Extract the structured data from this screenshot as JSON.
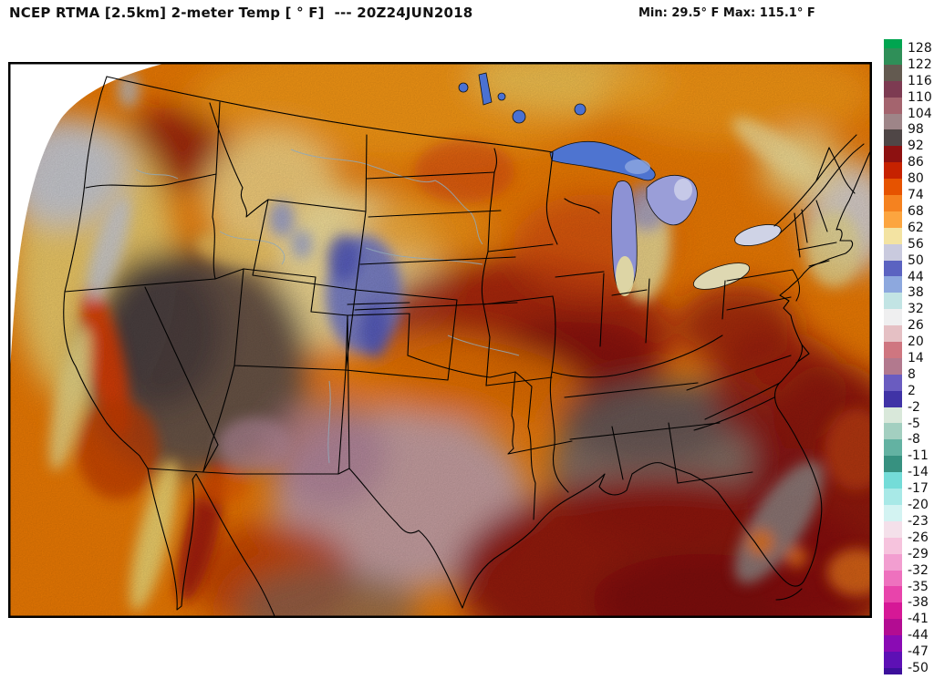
{
  "header": {
    "title": "NCEP RTMA [2.5km] 2-meter Temp [ ° F]  --- 20Z24JUN2018",
    "stats": "Min: 29.5° F Max: 115.1° F"
  },
  "colorbar": {
    "units": "°F",
    "tick_labels": [
      "128",
      "122",
      "116",
      "110",
      "104",
      "98",
      "92",
      "86",
      "80",
      "74",
      "68",
      "62",
      "56",
      "50",
      "44",
      "38",
      "32",
      "26",
      "20",
      "14",
      "8",
      "2",
      "-2",
      "-5",
      "-8",
      "-11",
      "-14",
      "-17",
      "-20",
      "-23",
      "-26",
      "-29",
      "-32",
      "-35",
      "-38",
      "-41",
      "-44",
      "-47",
      "-50"
    ],
    "segment_colors": [
      "#00a550",
      "#2f8f58",
      "#635a50",
      "#7d3b52",
      "#a4646e",
      "#9e8588",
      "#4f4646",
      "#8d1111",
      "#c62200",
      "#e65300",
      "#f5821f",
      "#fca53f",
      "#f3e3a2",
      "#c9cade",
      "#5b63c1",
      "#8da8de",
      "#c2e4e4",
      "#efeff0",
      "#e5c0c4",
      "#cf7680",
      "#b2798e",
      "#6a5cc0",
      "#4033a6",
      "#d9e8da",
      "#a3cfc0",
      "#63b2a2",
      "#379180",
      "#74dcd8",
      "#a8e9e7",
      "#d3f3f2",
      "#f4e0ea",
      "#f6c3dd",
      "#f29ed0",
      "#ee71be",
      "#e844ab",
      "#d61896",
      "#b30c92",
      "#8a0bb4",
      "#5d10b5",
      "#3c0f9b"
    ]
  },
  "map_colors": {
    "base_orange": "#ef7c04",
    "ocean_yellow": "#eecf6d",
    "cold_lavender": "#c9cdde",
    "hot_gray": "#5d504d",
    "texas_pink": "#c5a2ab",
    "gulf_dark_red": "#8f130b",
    "lake_blue": "#4e74d0",
    "no_data_white": "#ffffff"
  }
}
